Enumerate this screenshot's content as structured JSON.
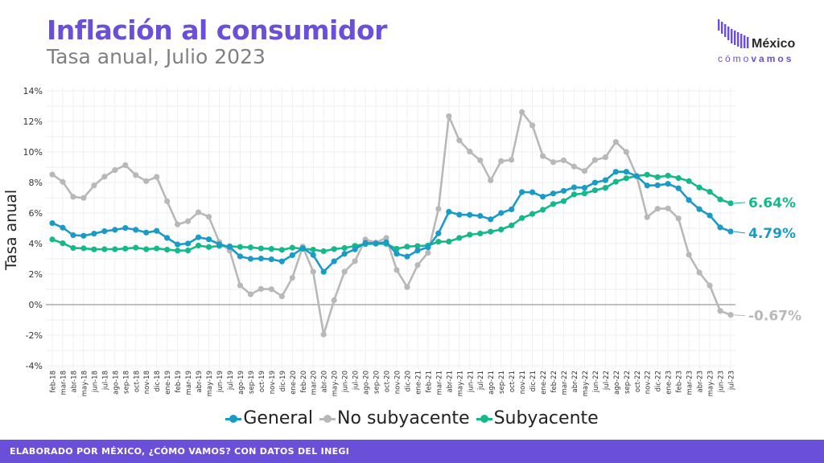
{
  "header": {
    "title": "Inflación al consumidor",
    "subtitle": "Tasa anual, Julio 2023"
  },
  "logo": {
    "name": "México",
    "tag_light": "cómo",
    "tag_bold": "vamos",
    "color": "#6a4fd8"
  },
  "footer": {
    "text": "ELABORADO POR MÉXICO, ¿CÓMO VAMOS? CON DATOS DEL INEGI",
    "color": "#6a4fd8"
  },
  "chart_data": {
    "type": "line",
    "ylabel": "Tasa anual",
    "ylim": [
      -4,
      14
    ],
    "yticks": [
      "-4%",
      "-2%",
      "0%",
      "2%",
      "4%",
      "6%",
      "8%",
      "10%",
      "12%",
      "14%"
    ],
    "ytick_values": [
      -4,
      -2,
      0,
      2,
      4,
      6,
      8,
      10,
      12,
      14
    ],
    "grid": true,
    "legend_position": "bottom",
    "x": [
      "feb-18",
      "mar-18",
      "abr-18",
      "may-18",
      "jun-18",
      "jul-18",
      "ago-18",
      "sep-18",
      "oct-18",
      "nov-18",
      "dic-18",
      "ene-19",
      "feb-19",
      "mar-19",
      "abr-19",
      "may-19",
      "jun-19",
      "jul-19",
      "ago-19",
      "sep-19",
      "oct-19",
      "nov-19",
      "dic-19",
      "ene-20",
      "feb-20",
      "mar-20",
      "abr-20",
      "may-20",
      "jun-20",
      "jul-20",
      "ago-20",
      "sep-20",
      "oct-20",
      "nov-20",
      "dic-20",
      "ene-21",
      "feb-21",
      "mar-21",
      "abr-21",
      "may-21",
      "jun-21",
      "jul-21",
      "ago-21",
      "sep-21",
      "oct-21",
      "nov-21",
      "dic-21",
      "ene-22",
      "feb-22",
      "mar-22",
      "abr-22",
      "may-22",
      "jun-22",
      "jul-22",
      "ago-22",
      "sep-22",
      "oct-22",
      "nov-22",
      "dic-22",
      "ene-23",
      "feb-23",
      "mar-23",
      "abr-23",
      "may-23",
      "jun-23",
      "jul-23"
    ],
    "series": [
      {
        "name": "General",
        "color": "#1a9bc7",
        "end_label": "4.79%",
        "values": [
          5.34,
          5.04,
          4.55,
          4.51,
          4.65,
          4.81,
          4.9,
          5.02,
          4.9,
          4.72,
          4.83,
          4.37,
          3.94,
          4.0,
          4.41,
          4.28,
          3.95,
          3.78,
          3.16,
          3.0,
          3.02,
          2.97,
          2.83,
          3.24,
          3.7,
          3.25,
          2.15,
          2.84,
          3.33,
          3.62,
          4.05,
          4.01,
          4.09,
          3.33,
          3.15,
          3.54,
          3.76,
          4.67,
          6.08,
          5.89,
          5.88,
          5.81,
          5.59,
          6.0,
          6.24,
          7.37,
          7.36,
          7.07,
          7.28,
          7.45,
          7.68,
          7.65,
          7.99,
          8.15,
          8.7,
          8.7,
          8.41,
          7.8,
          7.82,
          7.91,
          7.62,
          6.85,
          6.25,
          5.84,
          5.06,
          4.79
        ]
      },
      {
        "name": "No subyacente",
        "color": "#b8b8b8",
        "end_label": "-0.67%",
        "values": [
          8.52,
          8.04,
          7.06,
          6.99,
          7.8,
          8.38,
          8.81,
          9.13,
          8.48,
          8.09,
          8.36,
          6.77,
          5.25,
          5.46,
          6.05,
          5.75,
          4.1,
          3.53,
          1.26,
          0.68,
          1.03,
          1.01,
          0.55,
          1.76,
          3.8,
          2.16,
          -1.95,
          0.29,
          2.16,
          2.85,
          4.27,
          4.07,
          4.37,
          2.27,
          1.15,
          2.59,
          3.4,
          6.27,
          12.34,
          10.76,
          10.02,
          9.45,
          8.14,
          9.4,
          9.48,
          12.61,
          11.74,
          9.73,
          9.33,
          9.45,
          9.04,
          8.75,
          9.47,
          9.65,
          10.65,
          10.0,
          8.42,
          5.73,
          6.28,
          6.3,
          5.64,
          3.27,
          2.1,
          1.25,
          -0.41,
          -0.67
        ]
      },
      {
        "name": "Subyacente",
        "color": "#14b88a",
        "end_label": "6.64%",
        "values": [
          4.27,
          4.02,
          3.71,
          3.69,
          3.62,
          3.63,
          3.63,
          3.67,
          3.73,
          3.63,
          3.68,
          3.6,
          3.54,
          3.55,
          3.87,
          3.77,
          3.85,
          3.82,
          3.78,
          3.75,
          3.68,
          3.65,
          3.59,
          3.73,
          3.66,
          3.6,
          3.5,
          3.64,
          3.71,
          3.85,
          3.97,
          3.99,
          3.98,
          3.66,
          3.8,
          3.84,
          3.87,
          4.12,
          4.13,
          4.37,
          4.58,
          4.66,
          4.78,
          4.92,
          5.19,
          5.67,
          5.94,
          6.21,
          6.59,
          6.78,
          7.22,
          7.28,
          7.49,
          7.65,
          8.05,
          8.28,
          8.42,
          8.51,
          8.35,
          8.45,
          8.29,
          8.09,
          7.67,
          7.39,
          6.89,
          6.64
        ]
      }
    ]
  }
}
